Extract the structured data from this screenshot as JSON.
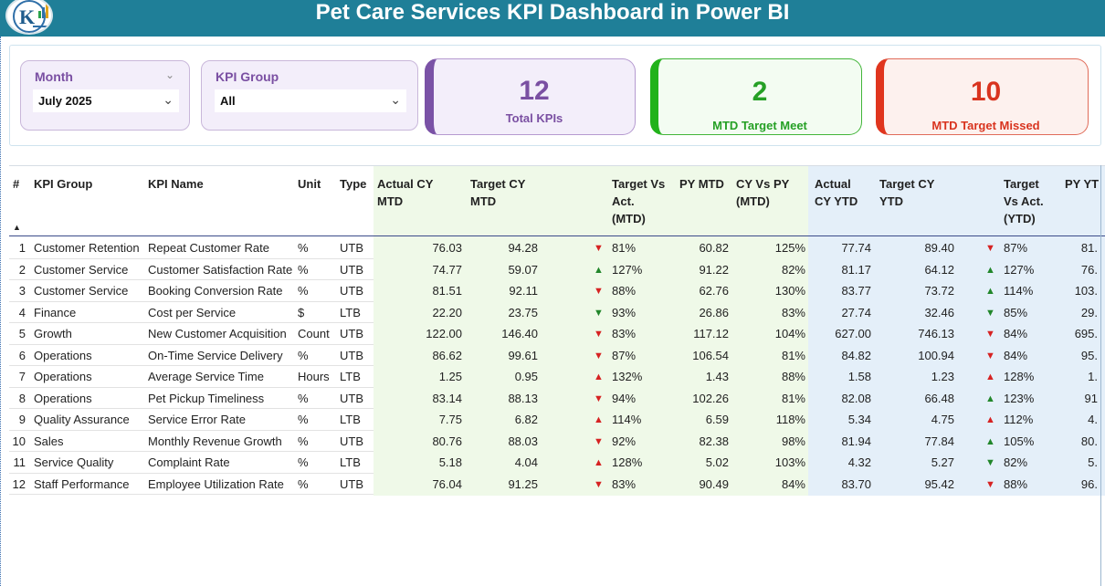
{
  "header": {
    "title": "Pet Care Services KPI Dashboard in Power BI",
    "logo_icon": "k-chart-logo-icon"
  },
  "filters": {
    "month": {
      "label": "Month",
      "value": "July 2025"
    },
    "kpi_group": {
      "label": "KPI Group",
      "value": "All"
    }
  },
  "cards": {
    "total": {
      "value": "12",
      "label": "Total KPIs",
      "color": "#7a4fa2"
    },
    "meet": {
      "value": "2",
      "label": "MTD Target Meet",
      "color": "#25a025"
    },
    "missed": {
      "value": "10",
      "label": "MTD Target Missed",
      "color": "#d9341f"
    }
  },
  "table": {
    "columns": {
      "num": "#",
      "group": "KPI Group",
      "name": "KPI Name",
      "unit": "Unit",
      "type": "Type",
      "act_mtd_1": "Actual CY",
      "act_mtd_2": "MTD",
      "tgt_mtd_1": "Target CY",
      "tgt_mtd_2": "MTD",
      "tva_mtd_1": "Target Vs",
      "tva_mtd_2": "Act.",
      "tva_mtd_3": "(MTD)",
      "py_mtd": "PY MTD",
      "cvp_mtd_1": "CY Vs PY",
      "cvp_mtd_2": "(MTD)",
      "act_ytd_1": "Actual",
      "act_ytd_2": "CY YTD",
      "tgt_ytd_1": "Target CY",
      "tgt_ytd_2": "YTD",
      "tva_ytd_1": "Target",
      "tva_ytd_2": "Vs Act.",
      "tva_ytd_3": "(YTD)",
      "py_ytd": "PY YT"
    },
    "rows": [
      {
        "n": "1",
        "group": "Customer Retention",
        "name": "Repeat Customer Rate",
        "unit": "%",
        "type": "UTB",
        "act_mtd": "76.03",
        "tgt_mtd": "94.28",
        "mtd_arrow": "▼",
        "mtd_dir": "down",
        "mtd_pct": "81%",
        "py_mtd": "60.82",
        "cvp": "125%",
        "act_ytd": "77.74",
        "tgt_ytd": "89.40",
        "ytd_arrow": "▼",
        "ytd_dir": "down",
        "ytd_pct": "87%",
        "py_ytd": "81."
      },
      {
        "n": "2",
        "group": "Customer Service",
        "name": "Customer Satisfaction Rate",
        "unit": "%",
        "type": "UTB",
        "act_mtd": "74.77",
        "tgt_mtd": "59.07",
        "mtd_arrow": "▲",
        "mtd_dir": "up",
        "mtd_pct": "127%",
        "py_mtd": "91.22",
        "cvp": "82%",
        "act_ytd": "81.17",
        "tgt_ytd": "64.12",
        "ytd_arrow": "▲",
        "ytd_dir": "up",
        "ytd_pct": "127%",
        "py_ytd": "76."
      },
      {
        "n": "3",
        "group": "Customer Service",
        "name": "Booking Conversion Rate",
        "unit": "%",
        "type": "UTB",
        "act_mtd": "81.51",
        "tgt_mtd": "92.11",
        "mtd_arrow": "▼",
        "mtd_dir": "down",
        "mtd_pct": "88%",
        "py_mtd": "62.76",
        "cvp": "130%",
        "act_ytd": "83.77",
        "tgt_ytd": "73.72",
        "ytd_arrow": "▲",
        "ytd_dir": "up",
        "ytd_pct": "114%",
        "py_ytd": "103."
      },
      {
        "n": "4",
        "group": "Finance",
        "name": "Cost per Service",
        "unit": "$",
        "type": "LTB",
        "act_mtd": "22.20",
        "tgt_mtd": "23.75",
        "mtd_arrow": "▼",
        "mtd_dir": "up",
        "mtd_pct": "93%",
        "py_mtd": "26.86",
        "cvp": "83%",
        "act_ytd": "27.74",
        "tgt_ytd": "32.46",
        "ytd_arrow": "▼",
        "ytd_dir": "up",
        "ytd_pct": "85%",
        "py_ytd": "29."
      },
      {
        "n": "5",
        "group": "Growth",
        "name": "New Customer Acquisition",
        "unit": "Count",
        "type": "UTB",
        "act_mtd": "122.00",
        "tgt_mtd": "146.40",
        "mtd_arrow": "▼",
        "mtd_dir": "down",
        "mtd_pct": "83%",
        "py_mtd": "117.12",
        "cvp": "104%",
        "act_ytd": "627.00",
        "tgt_ytd": "746.13",
        "ytd_arrow": "▼",
        "ytd_dir": "down",
        "ytd_pct": "84%",
        "py_ytd": "695."
      },
      {
        "n": "6",
        "group": "Operations",
        "name": "On-Time Service Delivery",
        "unit": "%",
        "type": "UTB",
        "act_mtd": "86.62",
        "tgt_mtd": "99.61",
        "mtd_arrow": "▼",
        "mtd_dir": "down",
        "mtd_pct": "87%",
        "py_mtd": "106.54",
        "cvp": "81%",
        "act_ytd": "84.82",
        "tgt_ytd": "100.94",
        "ytd_arrow": "▼",
        "ytd_dir": "down",
        "ytd_pct": "84%",
        "py_ytd": "95."
      },
      {
        "n": "7",
        "group": "Operations",
        "name": "Average Service Time",
        "unit": "Hours",
        "type": "LTB",
        "act_mtd": "1.25",
        "tgt_mtd": "0.95",
        "mtd_arrow": "▲",
        "mtd_dir": "down",
        "mtd_pct": "132%",
        "py_mtd": "1.43",
        "cvp": "88%",
        "act_ytd": "1.58",
        "tgt_ytd": "1.23",
        "ytd_arrow": "▲",
        "ytd_dir": "down",
        "ytd_pct": "128%",
        "py_ytd": "1."
      },
      {
        "n": "8",
        "group": "Operations",
        "name": "Pet Pickup Timeliness",
        "unit": "%",
        "type": "UTB",
        "act_mtd": "83.14",
        "tgt_mtd": "88.13",
        "mtd_arrow": "▼",
        "mtd_dir": "down",
        "mtd_pct": "94%",
        "py_mtd": "102.26",
        "cvp": "81%",
        "act_ytd": "82.08",
        "tgt_ytd": "66.48",
        "ytd_arrow": "▲",
        "ytd_dir": "up",
        "ytd_pct": "123%",
        "py_ytd": "91"
      },
      {
        "n": "9",
        "group": "Quality Assurance",
        "name": "Service Error Rate",
        "unit": "%",
        "type": "LTB",
        "act_mtd": "7.75",
        "tgt_mtd": "6.82",
        "mtd_arrow": "▲",
        "mtd_dir": "down",
        "mtd_pct": "114%",
        "py_mtd": "6.59",
        "cvp": "118%",
        "act_ytd": "5.34",
        "tgt_ytd": "4.75",
        "ytd_arrow": "▲",
        "ytd_dir": "down",
        "ytd_pct": "112%",
        "py_ytd": "4."
      },
      {
        "n": "10",
        "group": "Sales",
        "name": "Monthly Revenue Growth",
        "unit": "%",
        "type": "UTB",
        "act_mtd": "80.76",
        "tgt_mtd": "88.03",
        "mtd_arrow": "▼",
        "mtd_dir": "down",
        "mtd_pct": "92%",
        "py_mtd": "82.38",
        "cvp": "98%",
        "act_ytd": "81.94",
        "tgt_ytd": "77.84",
        "ytd_arrow": "▲",
        "ytd_dir": "up",
        "ytd_pct": "105%",
        "py_ytd": "80."
      },
      {
        "n": "11",
        "group": "Service Quality",
        "name": "Complaint Rate",
        "unit": "%",
        "type": "LTB",
        "act_mtd": "5.18",
        "tgt_mtd": "4.04",
        "mtd_arrow": "▲",
        "mtd_dir": "down",
        "mtd_pct": "128%",
        "py_mtd": "5.02",
        "cvp": "103%",
        "act_ytd": "4.32",
        "tgt_ytd": "5.27",
        "ytd_arrow": "▼",
        "ytd_dir": "up",
        "ytd_pct": "82%",
        "py_ytd": "5."
      },
      {
        "n": "12",
        "group": "Staff Performance",
        "name": "Employee Utilization Rate",
        "unit": "%",
        "type": "UTB",
        "act_mtd": "76.04",
        "tgt_mtd": "91.25",
        "mtd_arrow": "▼",
        "mtd_dir": "down",
        "mtd_pct": "83%",
        "py_mtd": "90.49",
        "cvp": "84%",
        "act_ytd": "83.70",
        "tgt_ytd": "95.42",
        "ytd_arrow": "▼",
        "ytd_dir": "down",
        "ytd_pct": "88%",
        "py_ytd": "96."
      }
    ]
  }
}
